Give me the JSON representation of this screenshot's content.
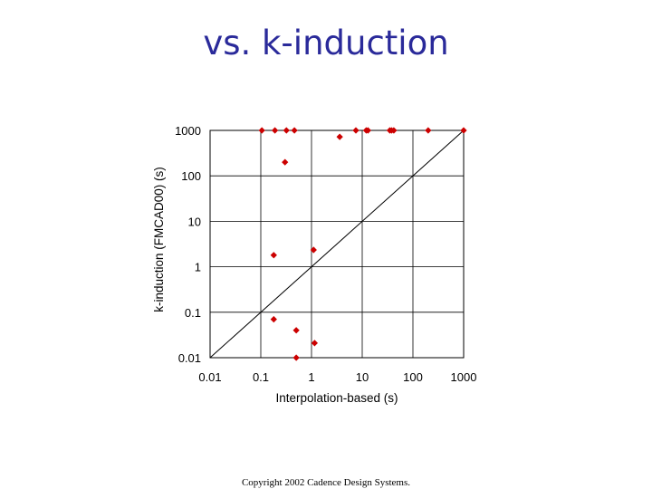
{
  "slide": {
    "title": "vs. k-induction",
    "footer": "Copyright 2002 Cadence Design Systems."
  },
  "colors": {
    "marker": "#cc0000",
    "grid": "#000000",
    "line": "#000000"
  },
  "chart_data": {
    "type": "scatter",
    "title": "",
    "xlabel": "Interpolation-based (s)",
    "ylabel": "k-induction (FMCAD00) (s)",
    "xscale": "log",
    "yscale": "log",
    "xlim": [
      0.01,
      1000
    ],
    "ylim": [
      0.01,
      1000
    ],
    "xticks": [
      "0.01",
      "0.1",
      "1",
      "10",
      "100",
      "1000"
    ],
    "yticks": [
      "0.01",
      "0.1",
      "1",
      "10",
      "100",
      "1000"
    ],
    "grid": true,
    "legend": "none",
    "reference_line": "y = x",
    "series": [
      {
        "marker": "diamond",
        "points": [
          [
            0.105,
            1000
          ],
          [
            0.19,
            1000
          ],
          [
            0.32,
            1000
          ],
          [
            0.46,
            1000
          ],
          [
            7.5,
            1000
          ],
          [
            12,
            1000
          ],
          [
            13,
            1000
          ],
          [
            35,
            1000
          ],
          [
            38,
            1000
          ],
          [
            42,
            1000
          ],
          [
            200,
            1000
          ],
          [
            1000,
            1000
          ],
          [
            3.6,
            720
          ],
          [
            0.3,
            200
          ],
          [
            1.1,
            2.35
          ],
          [
            0.18,
            1.8
          ],
          [
            0.18,
            0.07
          ],
          [
            0.5,
            0.04
          ],
          [
            1.15,
            0.021
          ],
          [
            0.5,
            0.01
          ]
        ]
      }
    ]
  }
}
